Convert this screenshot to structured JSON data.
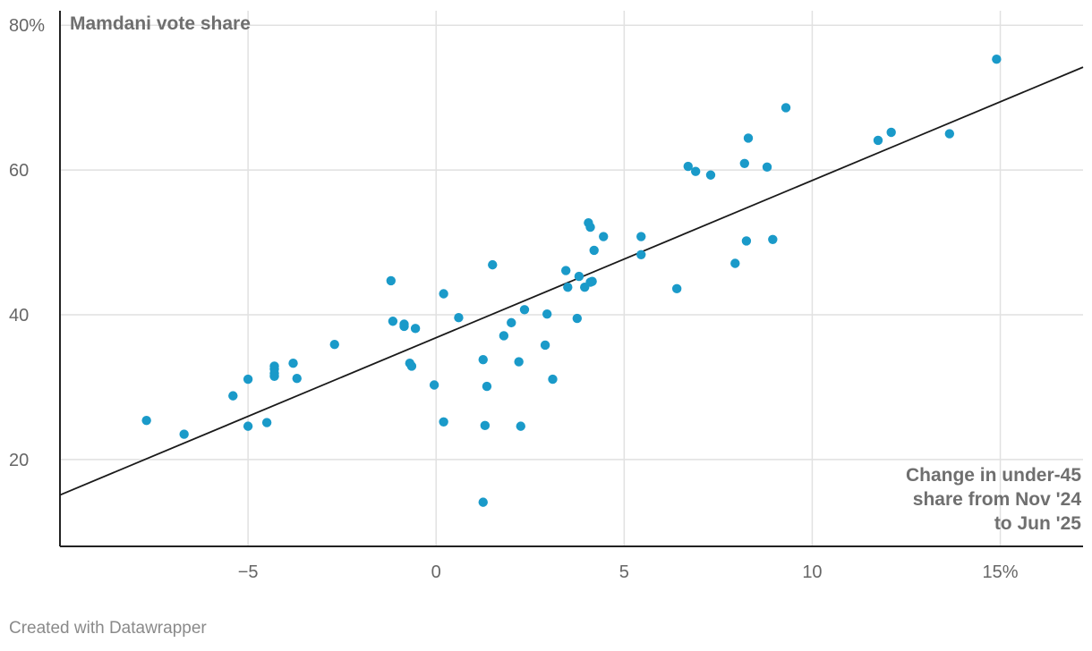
{
  "chart_data": {
    "type": "scatter",
    "title": "",
    "ylabel": "Mamdani vote share",
    "xlabel_lines": [
      "Change in under-45",
      "share from Nov '24",
      "to Jun '25"
    ],
    "xlim": [
      -10,
      17.2
    ],
    "ylim": [
      8,
      82
    ],
    "x_ticks": [
      {
        "value": -5,
        "label": "−5"
      },
      {
        "value": 0,
        "label": "0"
      },
      {
        "value": 5,
        "label": "5"
      },
      {
        "value": 10,
        "label": "10"
      },
      {
        "value": 15,
        "label": "15%"
      }
    ],
    "y_ticks": [
      {
        "value": 20,
        "label": "20"
      },
      {
        "value": 40,
        "label": "40"
      },
      {
        "value": 60,
        "label": "60"
      },
      {
        "value": 80,
        "label": "80%"
      }
    ],
    "grid": true,
    "point_color": "#1a9ac9",
    "trendline": {
      "x": [
        -10,
        17.2
      ],
      "y": [
        15.1,
        74.2
      ],
      "color": "#1a1a1a"
    },
    "series": [
      {
        "x": [
          -7.7,
          -6.7,
          -5.4,
          -5.0,
          -5.0,
          -4.5,
          -4.3,
          -4.3,
          -4.3,
          -4.3,
          -3.8,
          -3.7,
          -2.7,
          -1.2,
          -1.15,
          -0.85,
          -0.85,
          -0.7,
          -0.65,
          -0.55,
          -0.05,
          0.2,
          0.2,
          0.6,
          1.25,
          1.25,
          1.3,
          1.35,
          1.5,
          1.8,
          2.0,
          2.2,
          2.25,
          2.35,
          2.9,
          2.95,
          3.1,
          3.45,
          3.5,
          3.75,
          3.8,
          3.95,
          4.05,
          4.1,
          4.1,
          4.15,
          4.2,
          4.45,
          5.45,
          5.45,
          6.4,
          6.7,
          6.9,
          7.3,
          7.95,
          8.2,
          8.25,
          8.3,
          8.8,
          8.95,
          9.3,
          11.75,
          12.1,
          13.65,
          14.9
        ],
        "y": [
          25.4,
          23.5,
          28.8,
          24.6,
          31.1,
          25.1,
          32.9,
          32.5,
          31.9,
          31.5,
          33.3,
          31.2,
          35.9,
          44.7,
          39.1,
          38.7,
          38.4,
          33.3,
          32.9,
          38.1,
          30.3,
          42.9,
          25.2,
          39.6,
          33.8,
          14.1,
          24.7,
          30.1,
          46.9,
          37.1,
          38.9,
          33.5,
          24.6,
          40.7,
          35.8,
          40.1,
          31.1,
          46.1,
          43.8,
          39.5,
          45.3,
          43.8,
          52.7,
          52.1,
          44.5,
          44.6,
          48.9,
          50.8,
          50.8,
          48.3,
          43.6,
          60.5,
          59.8,
          59.3,
          47.1,
          60.9,
          50.2,
          64.4,
          60.4,
          50.4,
          68.6,
          64.1,
          65.2,
          65.0,
          75.3
        ]
      }
    ]
  },
  "footer": {
    "credit": "Created with Datawrapper"
  }
}
